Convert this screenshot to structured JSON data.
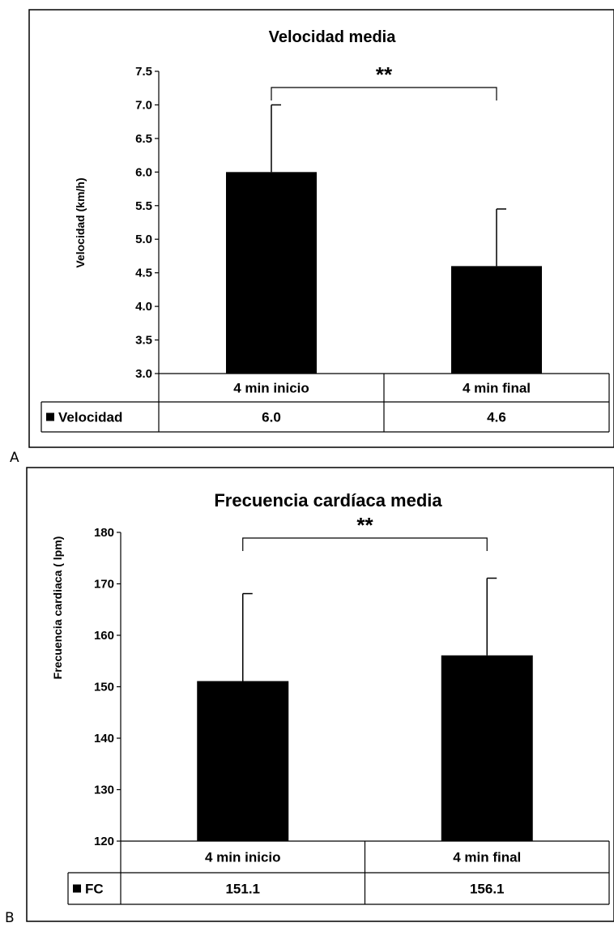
{
  "chart_data": [
    {
      "panel_label": "A",
      "type": "bar",
      "title": "Velocidad media",
      "ylabel": "Velocidad (km/h)",
      "xlabel": "",
      "ylim": [
        3.0,
        7.5
      ],
      "yticks": [
        "3.0",
        "3.5",
        "4.0",
        "4.5",
        "5.0",
        "5.5",
        "6.0",
        "6.5",
        "7.0",
        "7.5"
      ],
      "categories": [
        "4 min inicio",
        "4 min final"
      ],
      "series": [
        {
          "name": "Velocidad",
          "values": [
            6.0,
            4.6
          ],
          "error_plus": [
            1.0,
            0.85
          ],
          "color": "#000000"
        }
      ],
      "table_values": [
        "6.0",
        "4.6"
      ],
      "significance": "**",
      "grid": false,
      "legend": "data-table"
    },
    {
      "panel_label": "B",
      "type": "bar",
      "title": "Frecuencia cardíaca media",
      "ylabel": "Frecuencia cardiaca ( lpm)",
      "xlabel": "",
      "ylim": [
        120,
        180
      ],
      "yticks": [
        "120",
        "130",
        "140",
        "150",
        "160",
        "170",
        "180"
      ],
      "categories": [
        "4 min inicio",
        "4 min final"
      ],
      "series": [
        {
          "name": "FC",
          "values": [
            151.1,
            156.1
          ],
          "error_plus": [
            17,
            15
          ],
          "color": "#000000"
        }
      ],
      "table_values": [
        "151.1",
        "156.1"
      ],
      "significance": "**",
      "grid": false,
      "legend": "data-table"
    }
  ]
}
